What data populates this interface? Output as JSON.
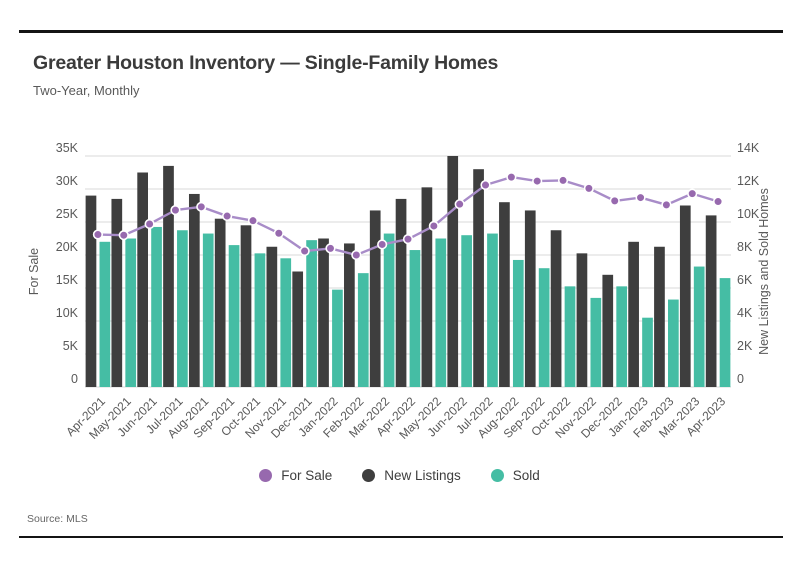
{
  "header": {
    "title": "Greater Houston Inventory — Single-Family Homes",
    "subtitle": "Two-Year, Monthly"
  },
  "source": "Source: MLS",
  "colors": {
    "for_sale_line": "#a88cc8",
    "for_sale_marker": "#9769ae",
    "new_listings": "#3e3e3e",
    "sold": "#45bda4",
    "grid": "#dadada",
    "axis_text": "#595959"
  },
  "chart_data": {
    "type": "bar",
    "title": "Greater Houston Inventory — Single-Family Homes",
    "subtitle": "Two-Year, Monthly",
    "grid": true,
    "legend_position": "bottom",
    "categories": [
      "Apr-2021",
      "May-2021",
      "Jun-2021",
      "Jul-2021",
      "Aug-2021",
      "Sep-2021",
      "Oct-2021",
      "Nov-2021",
      "Dec-2021",
      "Jan-2022",
      "Feb-2022",
      "Mar-2022",
      "Apr-2022",
      "May-2022",
      "Jun-2022",
      "Jul-2022",
      "Aug-2022",
      "Sep-2022",
      "Oct-2022",
      "Nov-2022",
      "Dec-2022",
      "Jan-2023",
      "Feb-2023",
      "Mar-2023",
      "Apr-2023"
    ],
    "series": [
      {
        "name": "For Sale",
        "type": "line",
        "axis": "left",
        "values": [
          23100,
          23000,
          24700,
          26800,
          27300,
          25900,
          25200,
          23300,
          20600,
          21000,
          20000,
          21600,
          22400,
          24400,
          27700,
          30600,
          31800,
          31200,
          31300,
          30100,
          28200,
          28700,
          27600,
          29300,
          28100
        ]
      },
      {
        "name": "New Listings",
        "type": "bar",
        "axis": "right",
        "values": [
          11600,
          11400,
          13000,
          13400,
          11700,
          10200,
          9800,
          8500,
          7000,
          9000,
          8700,
          10700,
          11400,
          12100,
          14000,
          13200,
          11200,
          10700,
          9500,
          8100,
          6800,
          8800,
          8500,
          11000,
          10400
        ]
      },
      {
        "name": "Sold",
        "type": "bar",
        "axis": "right",
        "values": [
          8800,
          9000,
          9700,
          9500,
          9300,
          8600,
          8100,
          7800,
          8900,
          5900,
          6900,
          9300,
          8300,
          9000,
          9200,
          9300,
          7700,
          7200,
          6100,
          5400,
          6100,
          4200,
          5300,
          7300,
          6600
        ]
      }
    ],
    "left_axis": {
      "label": "For Sale",
      "min": 0,
      "max": 35000,
      "step": 5000,
      "tick_labels": [
        "0",
        "5K",
        "10K",
        "15K",
        "20K",
        "25K",
        "30K",
        "35K"
      ]
    },
    "right_axis": {
      "label": "New Listings and Sold Homes",
      "min": 0,
      "max": 14000,
      "step": 2000,
      "tick_labels": [
        "0",
        "2K",
        "4K",
        "6K",
        "8K",
        "10K",
        "12K",
        "14K"
      ]
    }
  }
}
